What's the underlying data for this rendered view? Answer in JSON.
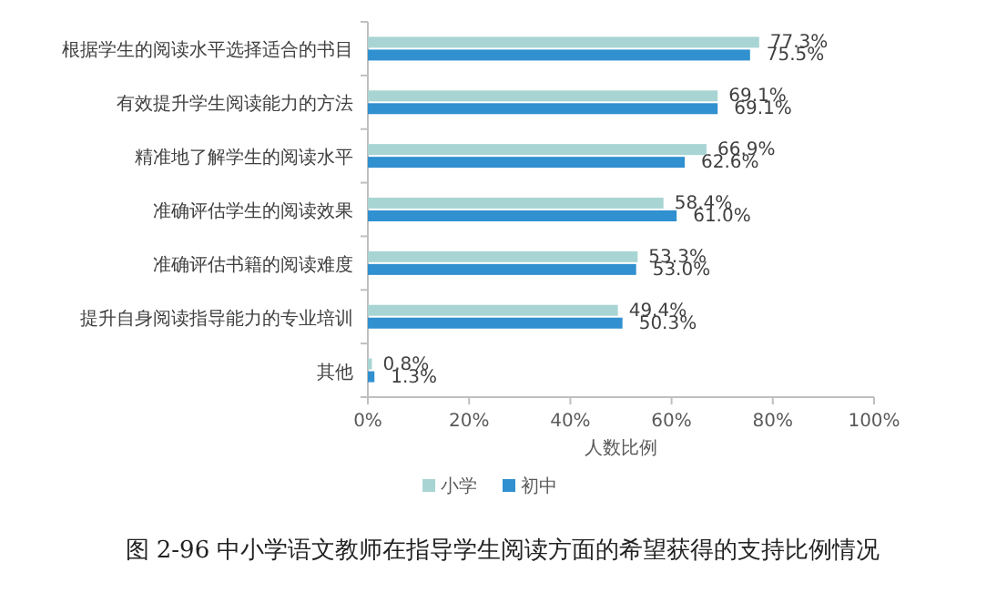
{
  "chart_data": {
    "type": "bar",
    "orientation": "horizontal",
    "title": "图 2-96 中小学语文教师在指导学生阅读方面的希望获得的支持比例情况",
    "xlabel": "人数比例",
    "categories": [
      "根据学生的阅读水平选择适合的书目",
      "有效提升学生阅读能力的方法",
      "精准地了解学生的阅读水平",
      "准确评估学生的阅读效果",
      "准确评估书籍的阅读难度",
      "提升自身阅读指导能力的专业培训",
      "其他"
    ],
    "series": [
      {
        "name": "小学",
        "color": "#a8d5d3",
        "values": [
          77.3,
          69.1,
          66.9,
          58.4,
          53.3,
          49.4,
          0.8
        ],
        "value_labels": [
          "77.3%",
          "69.1%",
          "66.9%",
          "58.4%",
          "53.3%",
          "49.4%",
          "0.8%"
        ]
      },
      {
        "name": "初中",
        "color": "#3090d0",
        "values": [
          75.5,
          69.1,
          62.6,
          61.0,
          53.0,
          50.3,
          1.3
        ],
        "value_labels": [
          "75.5%",
          "69.1%",
          "62.6%",
          "61.0%",
          "53.0%",
          "50.3%",
          "1.3%"
        ]
      }
    ],
    "xlim": [
      0,
      100
    ],
    "xticks": [
      {
        "value": 0,
        "label": "0%"
      },
      {
        "value": 20,
        "label": "20%"
      },
      {
        "value": 40,
        "label": "40%"
      },
      {
        "value": 60,
        "label": "60%"
      },
      {
        "value": 80,
        "label": "80%"
      },
      {
        "value": 100,
        "label": "100%"
      }
    ],
    "legend": "bottom"
  }
}
